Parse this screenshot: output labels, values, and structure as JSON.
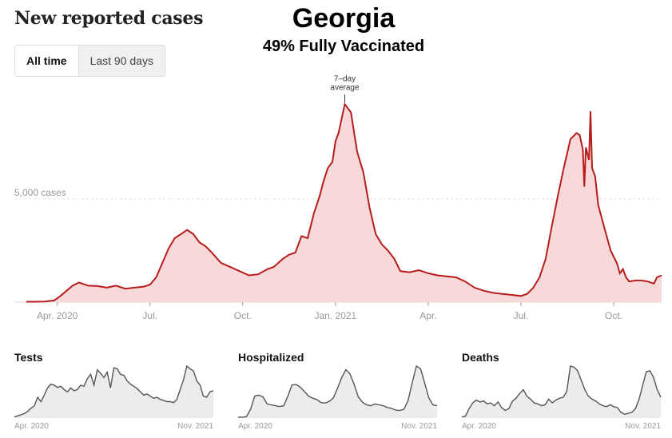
{
  "header": {
    "title": "New reported cases",
    "state": "Georgia",
    "vaccination": "49% Fully Vaccinated"
  },
  "toggle": {
    "options": [
      "All time",
      "Last 90 days"
    ],
    "selected": "All time"
  },
  "colors": {
    "line": "#b71c1c",
    "fill": "#f8d9d9",
    "mini_line": "#555555",
    "mini_fill": "#ececec",
    "axis_text": "#999999"
  },
  "chart_data": [
    {
      "type": "area",
      "title": "New reported cases",
      "series_name": "7-day average",
      "annotation": "7–day average",
      "gridline_label": "5,000 cases",
      "gridline_value": 5000,
      "ylim": [
        0,
        10000
      ],
      "x_ticks": [
        "Apr. 2020",
        "Jul.",
        "Oct.",
        "Jan. 2021",
        "Apr.",
        "Jul.",
        "Oct."
      ],
      "x_tick_positions_month_index": [
        1,
        4,
        7,
        10,
        13,
        16,
        19
      ],
      "x_range_months": [
        0,
        20.55
      ],
      "x_month_index": [
        0,
        0.3,
        0.6,
        0.9,
        1.1,
        1.3,
        1.5,
        1.7,
        2.0,
        2.3,
        2.6,
        2.9,
        3.2,
        3.5,
        3.8,
        4.0,
        4.2,
        4.4,
        4.6,
        4.8,
        5.0,
        5.2,
        5.4,
        5.6,
        5.8,
        6.0,
        6.3,
        6.6,
        6.9,
        7.2,
        7.5,
        7.8,
        8.0,
        8.3,
        8.5,
        8.7,
        8.9,
        9.1,
        9.3,
        9.5,
        9.6,
        9.75,
        9.9,
        10.0,
        10.1,
        10.3,
        10.5,
        10.7,
        10.9,
        11.1,
        11.3,
        11.5,
        11.7,
        11.9,
        12.1,
        12.4,
        12.7,
        13.0,
        13.3,
        13.6,
        13.9,
        14.2,
        14.5,
        14.8,
        15.1,
        15.4,
        15.7,
        16.0,
        16.2,
        16.4,
        16.6,
        16.8,
        17.0,
        17.2,
        17.4,
        17.6,
        17.8,
        17.9,
        18.0,
        18.05,
        18.1,
        18.2,
        18.25,
        18.3,
        18.4,
        18.5,
        18.7,
        18.9,
        19.1,
        19.2,
        19.3,
        19.4,
        19.5,
        19.7,
        19.9,
        20.1,
        20.3,
        20.4,
        20.55
      ],
      "values": [
        20,
        20,
        30,
        80,
        300,
        550,
        800,
        950,
        800,
        780,
        700,
        800,
        650,
        700,
        750,
        850,
        1200,
        1900,
        2600,
        3100,
        3300,
        3500,
        3300,
        2900,
        2700,
        2400,
        1900,
        1700,
        1500,
        1300,
        1350,
        1600,
        1700,
        2100,
        2300,
        2400,
        3200,
        3100,
        4300,
        5200,
        5800,
        6500,
        6800,
        7800,
        8200,
        9600,
        9200,
        7300,
        6300,
        4600,
        3300,
        2800,
        2500,
        2100,
        1500,
        1450,
        1550,
        1400,
        1300,
        1250,
        1200,
        1000,
        700,
        550,
        450,
        400,
        350,
        300,
        400,
        700,
        1200,
        2100,
        3700,
        5200,
        6600,
        7900,
        8200,
        8100,
        7400,
        5600,
        7500,
        6900,
        9250,
        6500,
        6100,
        4700,
        3600,
        2500,
        1900,
        1400,
        1600,
        1200,
        1000,
        1050,
        1050,
        1000,
        900,
        1200,
        1300
      ]
    },
    {
      "type": "area",
      "title": "Tests",
      "x_labels": [
        "Apr. 2020",
        "Nov. 2021"
      ],
      "values": [
        2,
        4,
        6,
        8,
        12,
        18,
        22,
        38,
        30,
        42,
        55,
        62,
        60,
        56,
        58,
        52,
        48,
        55,
        50,
        52,
        60,
        58,
        72,
        80,
        60,
        88,
        82,
        74,
        84,
        55,
        92,
        90,
        80,
        78,
        68,
        62,
        58,
        54,
        48,
        42,
        44,
        40,
        36,
        38,
        34,
        32,
        30,
        30,
        28,
        34,
        52,
        70,
        95,
        90,
        86,
        68,
        60,
        40,
        38,
        48,
        50
      ]
    },
    {
      "type": "area",
      "title": "Hospitalized",
      "x_labels": [
        "Apr. 2020",
        "Nov. 2021"
      ],
      "values": [
        2,
        2,
        3,
        20,
        50,
        52,
        48,
        32,
        30,
        28,
        26,
        28,
        50,
        75,
        76,
        70,
        60,
        50,
        45,
        42,
        35,
        34,
        38,
        46,
        68,
        92,
        110,
        100,
        76,
        48,
        36,
        30,
        28,
        32,
        30,
        28,
        24,
        22,
        18,
        17,
        20,
        40,
        80,
        118,
        112,
        80,
        46,
        30,
        28
      ]
    },
    {
      "type": "area",
      "title": "Deaths",
      "x_labels": [
        "Apr. 2020",
        "Nov. 2021"
      ],
      "values": [
        2,
        4,
        20,
        32,
        38,
        34,
        36,
        30,
        32,
        26,
        34,
        22,
        16,
        20,
        36,
        42,
        52,
        60,
        46,
        40,
        32,
        30,
        26,
        28,
        40,
        32,
        38,
        42,
        44,
        56,
        110,
        108,
        100,
        80,
        60,
        46,
        40,
        36,
        30,
        26,
        24,
        28,
        24,
        22,
        12,
        8,
        10,
        12,
        20,
        40,
        70,
        98,
        100,
        86,
        60,
        44
      ]
    }
  ]
}
